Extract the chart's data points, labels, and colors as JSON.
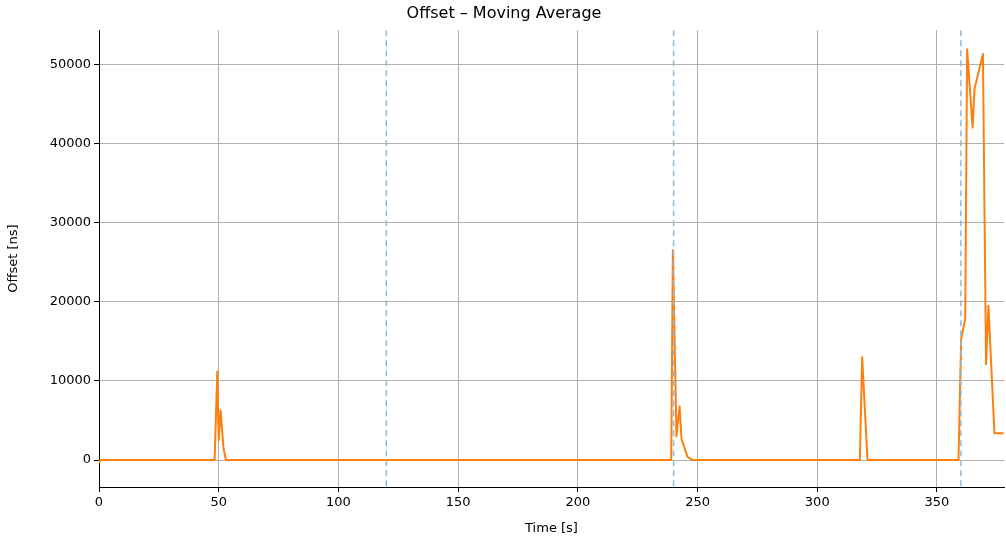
{
  "chart_data": {
    "type": "line",
    "title": "Offset – Moving Average",
    "xlabel": "Time [s]",
    "ylabel": "Offset [ns]",
    "x": [
      0,
      0.5,
      48.3,
      49.4,
      50,
      50.8,
      52,
      53,
      55,
      120,
      200,
      239,
      239.7,
      241.2,
      242.5,
      243.3,
      245.8,
      248,
      317.8,
      318.75,
      321,
      330,
      359,
      360.1,
      361.8,
      362.6,
      364.9,
      365.7,
      369.2,
      370.5,
      371.5,
      374,
      377.9
    ],
    "series": [
      {
        "color": "#ff7f0e",
        "values": [
          -400,
          0,
          0,
          11200,
          2500,
          6300,
          1500,
          0,
          0,
          0,
          0,
          0,
          26500,
          3000,
          6800,
          2700,
          400,
          0,
          0,
          13000,
          0,
          0,
          0,
          15300,
          17800,
          51900,
          42000,
          46900,
          51300,
          12100,
          19500,
          3400,
          3400
        ]
      }
    ],
    "xlim": [
      0,
      378
    ],
    "ylim": [
      -3400,
      54300
    ],
    "xticks": [
      0,
      50,
      100,
      150,
      200,
      250,
      300,
      350
    ],
    "yticks": [
      0,
      10000,
      20000,
      30000,
      40000,
      50000
    ],
    "grid": true,
    "line_style": "solid",
    "ref_lines": [
      {
        "axis": "x",
        "value": 120,
        "color": "#8fbbd9",
        "line_style": "dashed"
      },
      {
        "axis": "x",
        "value": 240,
        "color": "#8fbbd9",
        "line_style": "dashed"
      },
      {
        "axis": "x",
        "value": 360,
        "color": "#8fbbd9",
        "line_style": "dashed"
      }
    ]
  }
}
